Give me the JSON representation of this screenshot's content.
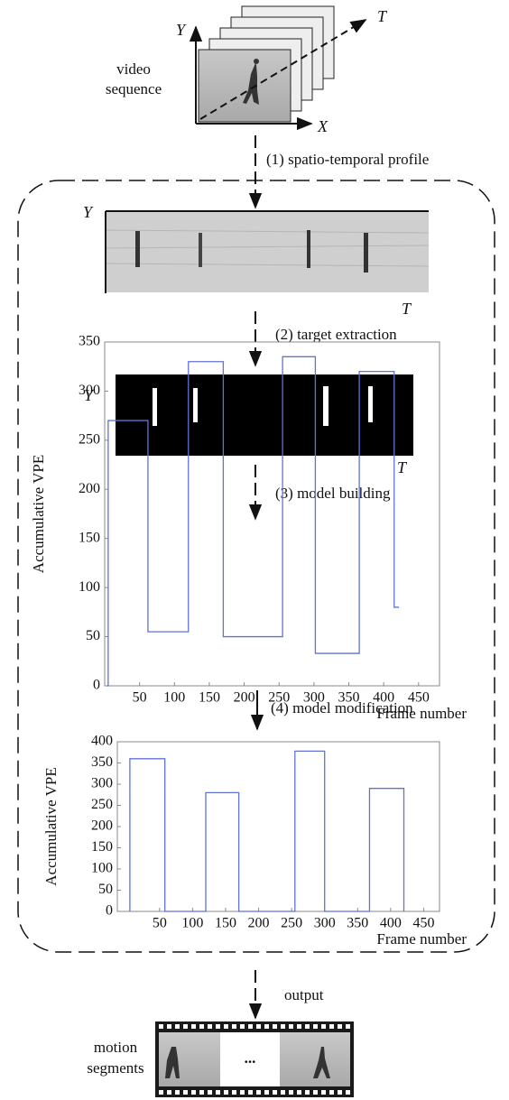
{
  "input": {
    "label_lines": [
      "video",
      "sequence"
    ],
    "axes": {
      "y": "Y",
      "x": "X",
      "t": "T"
    }
  },
  "steps": [
    "(1) spatio-temporal profile",
    "(2) target extraction",
    "(3) model building",
    "(4) model modification",
    "output"
  ],
  "profile": {
    "y_axis": "Y",
    "t_axis": "T"
  },
  "targets": {
    "y_axis": "Y",
    "t_axis": "T"
  },
  "charts": [
    {
      "type": "line",
      "y_label": "Accumulative VPE",
      "x_label": "Frame number",
      "color": "#6272d8",
      "xlim": [
        0,
        480
      ],
      "ylim": [
        0,
        350
      ],
      "xticks": [
        50,
        100,
        150,
        200,
        250,
        300,
        350,
        400,
        450
      ],
      "yticks": [
        0,
        50,
        100,
        150,
        200,
        250,
        300,
        350
      ],
      "x": [
        3,
        5,
        5,
        62,
        62,
        120,
        120,
        170,
        170,
        255,
        255,
        302,
        302,
        365,
        365,
        415,
        415,
        422
      ],
      "y": [
        0,
        0,
        270,
        270,
        55,
        55,
        330,
        330,
        50,
        50,
        335,
        335,
        33,
        33,
        320,
        320,
        80,
        80
      ]
    },
    {
      "type": "line",
      "y_label": "Accumulative VPE",
      "x_label": "Frame number",
      "color": "#6272d8",
      "xlim": [
        -14,
        474
      ],
      "ylim": [
        0,
        400
      ],
      "xticks": [
        50,
        100,
        150,
        200,
        250,
        300,
        350,
        400,
        450
      ],
      "yticks": [
        0,
        50,
        100,
        150,
        200,
        250,
        300,
        350,
        400
      ],
      "x": [
        5,
        5,
        58,
        58,
        120,
        120,
        170,
        170,
        255,
        255,
        300,
        300,
        368,
        368,
        420,
        420
      ],
      "y": [
        0,
        360,
        360,
        0,
        0,
        280,
        280,
        0,
        0,
        378,
        378,
        0,
        0,
        290,
        290,
        0
      ]
    }
  ],
  "output": {
    "label_lines": [
      "motion",
      "segments"
    ],
    "ellipsis": "..."
  }
}
